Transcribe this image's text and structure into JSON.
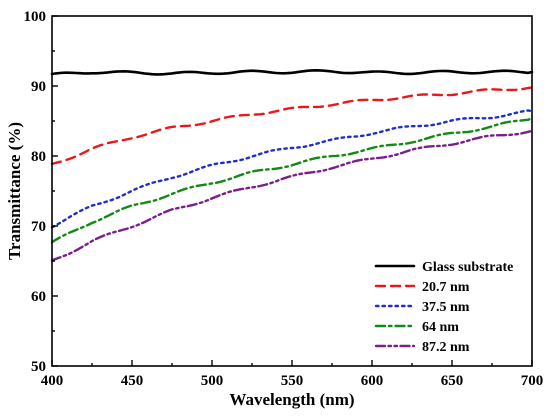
{
  "chart_data": {
    "type": "line",
    "xlabel": "Wavelength (nm)",
    "ylabel": "Transmittance (%)",
    "xlim": [
      400,
      700
    ],
    "ylim": [
      50,
      100
    ],
    "xticks": [
      400,
      450,
      500,
      550,
      600,
      650,
      700
    ],
    "yticks": [
      50,
      60,
      70,
      80,
      90,
      100
    ],
    "legend_position": "bottom-right",
    "grid": false,
    "x": [
      400,
      425,
      450,
      475,
      500,
      525,
      550,
      575,
      600,
      625,
      650,
      675,
      700
    ],
    "series": [
      {
        "name": "Glass substrate",
        "color": "#000000",
        "dash": "solid",
        "values": [
          91.6,
          92.0,
          91.9,
          91.8,
          91.9,
          92.0,
          92.0,
          92.1,
          91.9,
          91.9,
          92.0,
          92.0,
          92.0
        ]
      },
      {
        "name": "20.7 nm",
        "color": "#e8191b",
        "dash": "dash",
        "values": [
          78.8,
          81.0,
          82.7,
          84.0,
          85.0,
          86.0,
          86.7,
          87.4,
          88.0,
          88.5,
          88.9,
          89.4,
          89.8
        ]
      },
      {
        "name": "37.5 nm",
        "color": "#1f2fcf",
        "dash": "dot",
        "values": [
          70.0,
          72.8,
          75.0,
          77.0,
          78.6,
          80.0,
          81.2,
          82.2,
          83.3,
          84.2,
          85.0,
          85.6,
          86.4
        ]
      },
      {
        "name": "64 nm",
        "color": "#138a13",
        "dash": "dashdot",
        "values": [
          67.6,
          70.6,
          72.8,
          74.6,
          76.2,
          77.6,
          78.8,
          80.0,
          81.0,
          82.1,
          83.2,
          84.2,
          85.4
        ]
      },
      {
        "name": "87.2 nm",
        "color": "#7a1f8c",
        "dash": "dashdotdot",
        "values": [
          65.0,
          67.8,
          70.0,
          72.2,
          74.0,
          75.6,
          77.0,
          78.4,
          79.6,
          80.8,
          81.8,
          82.8,
          83.6
        ]
      }
    ]
  }
}
